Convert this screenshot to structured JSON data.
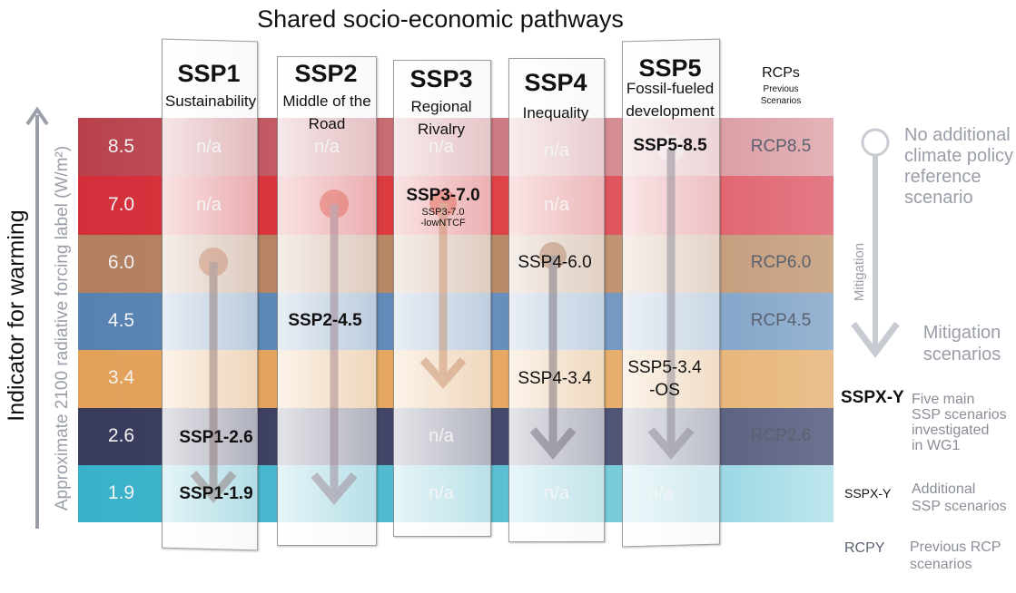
{
  "title": "Shared socio-economic pathways",
  "y_axis": {
    "title": "Indicator for warming",
    "subtitle": "Approximate 2100 radiative forcing label (W/m²)"
  },
  "levels": [
    "8.5",
    "7.0",
    "6.0",
    "4.5",
    "3.4",
    "2.6",
    "1.9"
  ],
  "colors": {
    "level_8_5": "#b9414c",
    "level_7_0": "#d7303c",
    "level_6_0": "#b07e5c",
    "level_4_5": "#5b85b3",
    "level_3_4": "#e3a55f",
    "level_2_6": "#3a3d5e",
    "level_1_9": "#3eb4cb"
  },
  "pathways": [
    {
      "code": "SSP1",
      "name": "Sustainability"
    },
    {
      "code": "SSP2",
      "name": "Middle of the Road"
    },
    {
      "code": "SSP3",
      "name": "Regional Rivalry"
    },
    {
      "code": "SSP4",
      "name": "Inequality"
    },
    {
      "code": "SSP5",
      "name": "Fossil-fueled development"
    }
  ],
  "na_label": "n/a",
  "scenarios": {
    "ssp5_85": "SSP5-8.5",
    "ssp3_70": "SSP3-7.0",
    "ssp3_70_low_a": "SSP3-7.0",
    "ssp3_70_low_b": "-lowNTCF",
    "ssp4_60": "SSP4-6.0",
    "ssp2_45": "SSP2-4.5",
    "ssp4_34": "SSP4-3.4",
    "ssp5_34_a": "SSP5-3.4",
    "ssp5_34_b": "-OS",
    "ssp1_26": "SSP1-2.6",
    "ssp1_19": "SSP1-1.9"
  },
  "rcps": {
    "header": "RCPs",
    "header_sub_a": "Previous",
    "header_sub_b": "Scenarios",
    "rcp85": "RCP8.5",
    "rcp60": "RCP6.0",
    "rcp45": "RCP4.5",
    "rcp26": "RCP2.6"
  },
  "legend": {
    "no_policy": [
      "No additional",
      "climate policy",
      "reference",
      "scenario"
    ],
    "mitigation_axis": "Mitigation",
    "mitigation_scenarios": [
      "Mitigation",
      "scenarios"
    ],
    "main_key": "SSPX-Y",
    "main_desc": [
      "Five main",
      "SSP scenarios",
      "investigated",
      "in WG1"
    ],
    "additional_key": "SSPX-Y",
    "additional_desc": [
      "Additional",
      "SSP scenarios"
    ],
    "previous_key": "RCPY",
    "previous_desc": [
      "Previous RCP",
      "scenarios"
    ]
  }
}
